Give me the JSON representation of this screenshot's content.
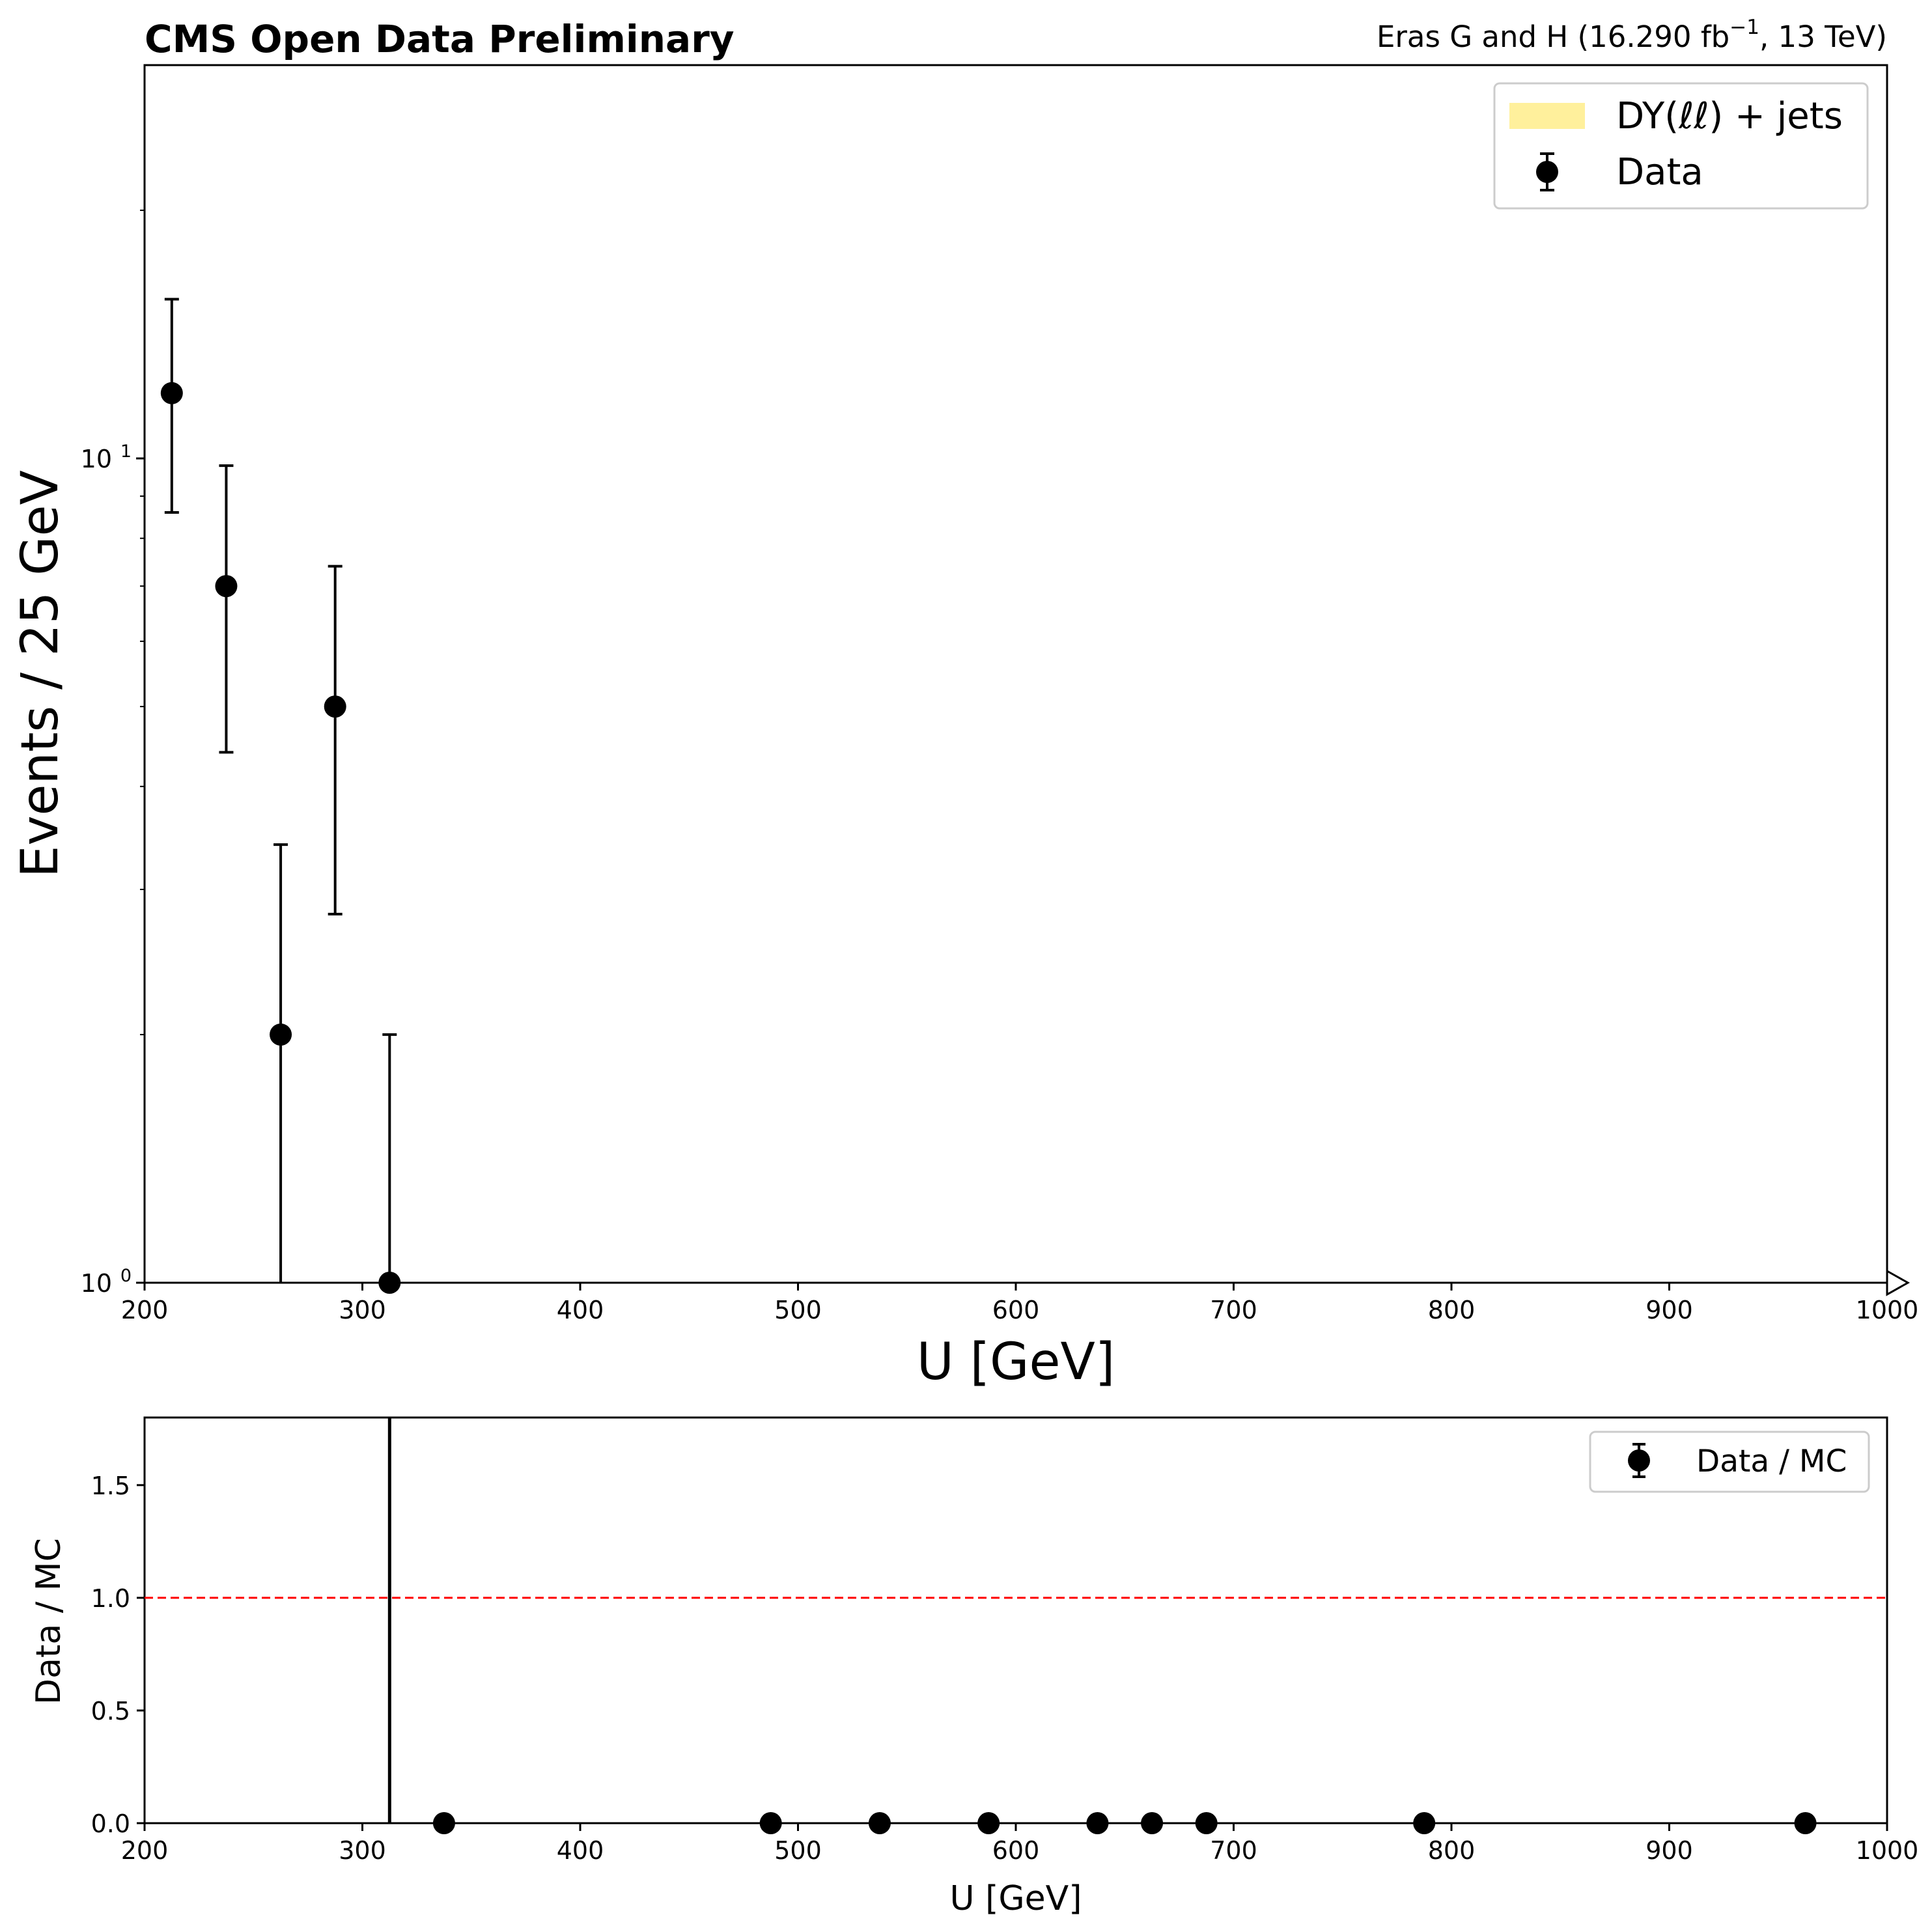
{
  "header": {
    "left": "CMS Open Data Preliminary",
    "right_prefix": "Eras G and H (16.290 fb",
    "right_sup": "−1",
    "right_suffix": ", 13 TeV)"
  },
  "chart_data": [
    {
      "type": "scatter",
      "title": "",
      "xlabel": "U [GeV]",
      "ylabel": "Events / 25 GeV",
      "xlim": [
        200,
        1000
      ],
      "ylim": [
        1,
        30
      ],
      "yscale": "log",
      "x_ticks": [
        "200",
        "300",
        "400",
        "500",
        "600",
        "700",
        "800",
        "900",
        "1000"
      ],
      "y_ticks": [
        {
          "base": "10",
          "exp": "0"
        },
        {
          "base": "10",
          "exp": "1"
        }
      ],
      "legend": {
        "position": "top-right",
        "entries": [
          {
            "label": "DY(ℓℓ) + jets",
            "kind": "band",
            "color": "#fff09c"
          },
          {
            "label": "Data",
            "kind": "errorbar-marker",
            "color": "#000000"
          }
        ]
      },
      "overflow_marker": "right-arrow",
      "series": [
        {
          "name": "Data",
          "x": [
            212.5,
            237.5,
            262.5,
            287.5,
            312.5
          ],
          "y": [
            12,
            7,
            2,
            5,
            1
          ],
          "yerr_low": [
            3.4,
            2.6,
            1.0,
            2.2,
            1.0
          ],
          "yerr_high": [
            3.6,
            2.8,
            1.4,
            2.4,
            1.0
          ]
        }
      ]
    },
    {
      "type": "scatter",
      "title": "",
      "xlabel": "U [GeV]",
      "ylabel": "Data / MC",
      "xlim": [
        200,
        1000
      ],
      "ylim": [
        0,
        1.8
      ],
      "x_ticks": [
        "200",
        "300",
        "400",
        "500",
        "600",
        "700",
        "800",
        "900",
        "1000"
      ],
      "y_ticks": [
        "0.0",
        "0.5",
        "1.0",
        "1.5"
      ],
      "reference_line": {
        "y": 1.0,
        "color": "#ff0000",
        "style": "dashed"
      },
      "legend": {
        "position": "top-right",
        "entries": [
          {
            "label": "Data / MC",
            "kind": "errorbar-marker",
            "color": "#000000"
          }
        ]
      },
      "series": [
        {
          "name": "Data / MC",
          "x": [
            337.5,
            487.5,
            537.5,
            587.5,
            637.5,
            662.5,
            687.5,
            787.5,
            962.5
          ],
          "y": [
            0,
            0,
            0,
            0,
            0,
            0,
            0,
            0,
            0
          ]
        }
      ],
      "vertical_errorbar": {
        "x": 312.5,
        "y_low": 0,
        "y_high": 1.8
      }
    }
  ]
}
